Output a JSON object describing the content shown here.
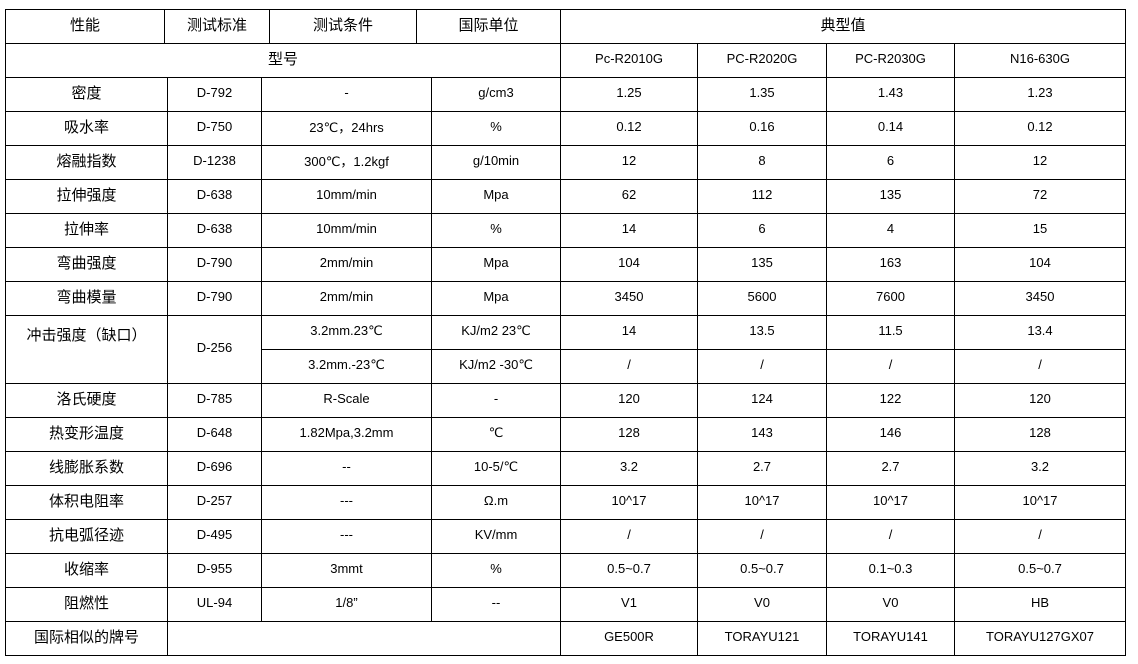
{
  "header": {
    "property": "性能",
    "standard": "测试标准",
    "condition": "测试条件",
    "unit": "国际单位",
    "typical": "典型值",
    "model_label": "型号",
    "models": [
      "Pc-R2010G",
      "PC-R2020G",
      "PC-R2030G",
      "N16-630G"
    ]
  },
  "rows": [
    {
      "property": "密度",
      "standard": "D-792",
      "condition": "-",
      "unit": "g/cm3",
      "values": [
        "1.25",
        "1.35",
        "1.43",
        "1.23"
      ]
    },
    {
      "property": "吸水率",
      "standard": "D-750",
      "condition": "23℃，24hrs",
      "unit": "%",
      "values": [
        "0.12",
        "0.16",
        "0.14",
        "0.12"
      ]
    },
    {
      "property": "熔融指数",
      "standard": "D-1238",
      "condition": "300℃，1.2kgf",
      "unit": "g/10min",
      "values": [
        "12",
        "8",
        "6",
        "12"
      ]
    },
    {
      "property": "拉伸强度",
      "standard": "D-638",
      "condition": "10mm/min",
      "unit": "Mpa",
      "values": [
        "62",
        "112",
        "135",
        "72"
      ]
    },
    {
      "property": "拉伸率",
      "standard": "D-638",
      "condition": "10mm/min",
      "unit": "%",
      "values": [
        "14",
        "6",
        "4",
        "15"
      ]
    },
    {
      "property": "弯曲强度",
      "standard": "D-790",
      "condition": "2mm/min",
      "unit": "Mpa",
      "values": [
        "104",
        "135",
        "163",
        "104"
      ]
    },
    {
      "property": "弯曲模量",
      "standard": "D-790",
      "condition": "2mm/min",
      "unit": "Mpa",
      "values": [
        "3450",
        "5600",
        "7600",
        "3450"
      ]
    }
  ],
  "impact": {
    "property": "冲击强度（缺口）",
    "standard": "D-256",
    "sub": [
      {
        "condition": "3.2mm.23℃",
        "unit": "KJ/m2 23℃",
        "values": [
          "14",
          "13.5",
          "11.5",
          "13.4"
        ]
      },
      {
        "condition": "3.2mm.-23℃",
        "unit": "KJ/m2 -30℃",
        "values": [
          "/",
          "/",
          "/",
          "/"
        ]
      }
    ]
  },
  "rows2": [
    {
      "property": "洛氏硬度",
      "standard": "D-785",
      "condition": "R-Scale",
      "unit": "-",
      "values": [
        "120",
        "124",
        "122",
        "120"
      ]
    },
    {
      "property": "热变形温度",
      "standard": "D-648",
      "condition": "1.82Mpa,3.2mm",
      "unit": "℃",
      "values": [
        "128",
        "143",
        "146",
        "128"
      ]
    },
    {
      "property": "线膨胀系数",
      "standard": "D-696",
      "condition": "--",
      "unit": "10-5/℃",
      "values": [
        "3.2",
        "2.7",
        "2.7",
        "3.2"
      ]
    },
    {
      "property": "体积电阻率",
      "standard": "D-257",
      "condition": "---",
      "unit": "Ω.m",
      "values": [
        "10^17",
        "10^17",
        "10^17",
        "10^17"
      ]
    },
    {
      "property": "抗电弧径迹",
      "standard": "D-495",
      "condition": "---",
      "unit": "KV/mm",
      "values": [
        "/",
        "/",
        "/",
        "/"
      ]
    },
    {
      "property": "收缩率",
      "standard": "D-955",
      "condition": "3mmt",
      "unit": "%",
      "values": [
        "0.5~0.7",
        "0.5~0.7",
        "0.1~0.3",
        "0.5~0.7"
      ]
    },
    {
      "property": "阻燃性",
      "standard": "UL-94",
      "condition": "1/8”",
      "unit": "--",
      "values": [
        "V1",
        "V0",
        "V0",
        "HB"
      ]
    }
  ],
  "similar": {
    "property": "国际相似的牌号",
    "values": [
      "GE500R",
      "TORAYU121",
      "TORAYU141",
      "TORAYU127GX07"
    ]
  }
}
